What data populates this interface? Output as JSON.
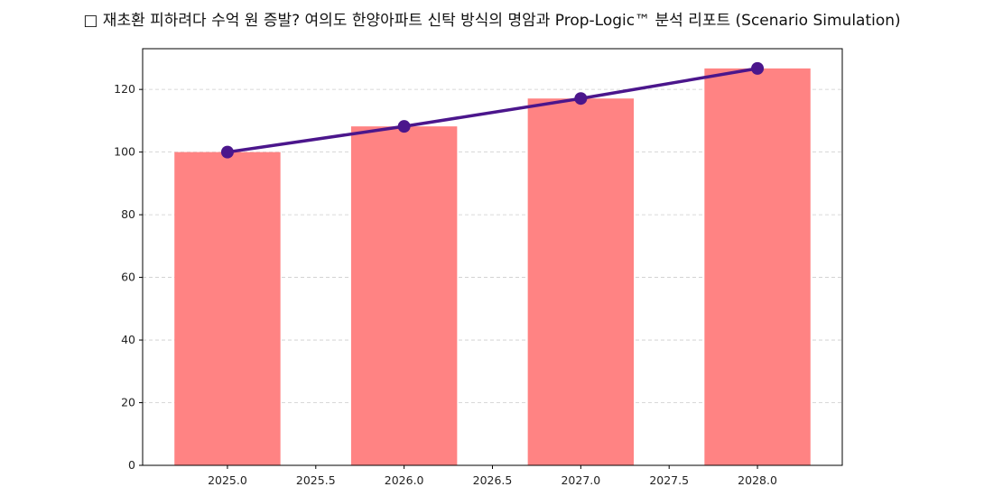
{
  "chart_data": {
    "type": "bar+line",
    "title": "□ 재초환 피하려다 수억 원 증발? 여의도 한양아파트 신탁 방식의 명암과 Prop-Logic™ 분석 리포트 (Scenario Simulation)",
    "xlabel": "",
    "ylabel": "",
    "x": [
      2025,
      2026,
      2027,
      2028
    ],
    "bar_values": [
      100,
      108.2,
      117.1,
      126.7
    ],
    "line_values": [
      100,
      108.2,
      117.1,
      126.7
    ],
    "bar_width": 0.6,
    "xlim": [
      2024.52,
      2028.48
    ],
    "ylim": [
      0,
      133
    ],
    "x_ticks": [
      "2025.0",
      "2025.5",
      "2026.0",
      "2026.5",
      "2027.0",
      "2027.5",
      "2028.0"
    ],
    "y_ticks": [
      "0",
      "20",
      "40",
      "60",
      "80",
      "100",
      "120"
    ],
    "grid": "y dashed",
    "colors": {
      "bar": "#ff8383",
      "line": "#4b168c"
    }
  }
}
